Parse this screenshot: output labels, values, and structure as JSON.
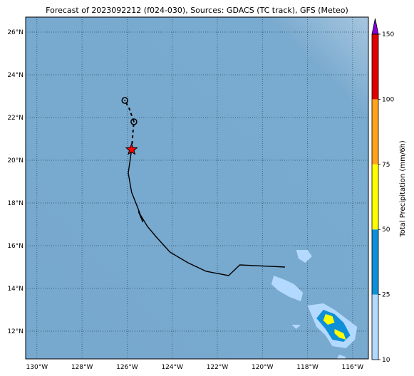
{
  "title": "Forecast of 2023092212 (f024-030), Sources: GDACS (TC track), GFS (Meteo)",
  "map": {
    "lon_range": [
      -130.5,
      -115.3
    ],
    "lat_range": [
      10.7,
      26.7
    ],
    "ocean_color": "#77a8ce",
    "grid_style": "dotted",
    "lon_ticks": [
      {
        "v": -130,
        "label": "130°W"
      },
      {
        "v": -128,
        "label": "128°W"
      },
      {
        "v": -126,
        "label": "126°W"
      },
      {
        "v": -124,
        "label": "124°W"
      },
      {
        "v": -122,
        "label": "122°W"
      },
      {
        "v": -120,
        "label": "120°W"
      },
      {
        "v": -118,
        "label": "118°W"
      },
      {
        "v": -116,
        "label": "116°W"
      }
    ],
    "lat_ticks": [
      {
        "v": 12,
        "label": "12°N"
      },
      {
        "v": 14,
        "label": "14°N"
      },
      {
        "v": 16,
        "label": "16°N"
      },
      {
        "v": 18,
        "label": "18°N"
      },
      {
        "v": 20,
        "label": "20°N"
      },
      {
        "v": 22,
        "label": "22°N"
      },
      {
        "v": 24,
        "label": "24°N"
      },
      {
        "v": 26,
        "label": "26°N"
      }
    ]
  },
  "track": {
    "past": [
      [
        -119.0,
        15.0
      ],
      [
        -121.0,
        15.1
      ],
      [
        -121.5,
        14.6
      ],
      [
        -122.5,
        14.8
      ],
      [
        -123.3,
        15.2
      ],
      [
        -124.1,
        15.7
      ],
      [
        -124.7,
        16.4
      ],
      [
        -125.1,
        16.9
      ],
      [
        -125.5,
        17.6
      ],
      [
        -125.3,
        17.1
      ],
      [
        -125.5,
        17.7
      ],
      [
        -125.8,
        18.5
      ],
      [
        -125.95,
        19.4
      ],
      [
        -125.8,
        20.5
      ]
    ],
    "forecast": [
      [
        -125.8,
        20.5
      ],
      [
        -125.75,
        21.2
      ],
      [
        -125.7,
        21.8
      ],
      [
        -125.9,
        22.4
      ],
      [
        -126.1,
        22.8
      ]
    ],
    "forecast_points": [
      [
        -125.7,
        21.8
      ],
      [
        -126.1,
        22.8
      ]
    ],
    "current_position": [
      -125.8,
      20.5
    ],
    "line_color": "#000000",
    "star_color": "#ff0000"
  },
  "precipitation": {
    "colors": {
      "10-25": "#b3d9ff",
      "25-50": "#0f8fd8",
      "50-75": "#ffff00"
    },
    "areas": [
      {
        "bin": "10-25",
        "polygon": [
          [
            -118.5,
            15.8
          ],
          [
            -118.0,
            15.8
          ],
          [
            -117.8,
            15.5
          ],
          [
            -118.1,
            15.2
          ],
          [
            -118.4,
            15.4
          ]
        ]
      },
      {
        "bin": "10-25",
        "polygon": [
          [
            -119.5,
            14.6
          ],
          [
            -119.0,
            14.4
          ],
          [
            -118.6,
            14.2
          ],
          [
            -118.2,
            13.8
          ],
          [
            -118.3,
            13.4
          ],
          [
            -118.8,
            13.6
          ],
          [
            -119.3,
            13.9
          ],
          [
            -119.6,
            14.2
          ]
        ]
      },
      {
        "bin": "10-25",
        "polygon": [
          [
            -118.0,
            13.2
          ],
          [
            -117.3,
            13.3
          ],
          [
            -116.8,
            13.0
          ],
          [
            -116.3,
            12.6
          ],
          [
            -115.8,
            12.2
          ],
          [
            -115.9,
            11.6
          ],
          [
            -116.3,
            11.2
          ],
          [
            -116.9,
            11.3
          ],
          [
            -117.2,
            11.8
          ],
          [
            -117.6,
            12.2
          ],
          [
            -117.8,
            12.7
          ]
        ]
      },
      {
        "bin": "10-25",
        "polygon": [
          [
            -116.6,
            10.9
          ],
          [
            -116.3,
            10.8
          ],
          [
            -116.4,
            10.6
          ],
          [
            -116.7,
            10.7
          ]
        ]
      },
      {
        "bin": "10-25",
        "polygon": [
          [
            -118.7,
            12.3
          ],
          [
            -118.3,
            12.3
          ],
          [
            -118.5,
            12.1
          ]
        ]
      },
      {
        "bin": "25-50",
        "polygon": [
          [
            -117.3,
            13.0
          ],
          [
            -116.8,
            12.8
          ],
          [
            -116.4,
            12.4
          ],
          [
            -116.1,
            11.8
          ],
          [
            -116.4,
            11.5
          ],
          [
            -116.9,
            11.6
          ],
          [
            -117.2,
            12.1
          ],
          [
            -117.6,
            12.6
          ]
        ]
      },
      {
        "bin": "50-75",
        "polygon": [
          [
            -117.2,
            12.8
          ],
          [
            -116.9,
            12.7
          ],
          [
            -116.8,
            12.4
          ],
          [
            -117.1,
            12.3
          ],
          [
            -117.3,
            12.5
          ]
        ]
      },
      {
        "bin": "50-75",
        "polygon": [
          [
            -116.8,
            12.1
          ],
          [
            -116.4,
            11.9
          ],
          [
            -116.3,
            11.6
          ],
          [
            -116.6,
            11.7
          ],
          [
            -116.8,
            11.9
          ]
        ]
      }
    ]
  },
  "colorbar": {
    "label": "Total Precipitation (mm/6h)",
    "ticks": [
      "10",
      "25",
      "50",
      "75",
      "100",
      "150"
    ],
    "bins": [
      {
        "from": 10,
        "to": 25,
        "color": "#b3d9ff"
      },
      {
        "from": 25,
        "to": 50,
        "color": "#0f8fd8"
      },
      {
        "from": 50,
        "to": 75,
        "color": "#ffff00"
      },
      {
        "from": 75,
        "to": 100,
        "color": "#ffa31a"
      },
      {
        "from": 100,
        "to": 150,
        "color": "#e00000"
      }
    ],
    "extend_color": "#8a00d4"
  }
}
